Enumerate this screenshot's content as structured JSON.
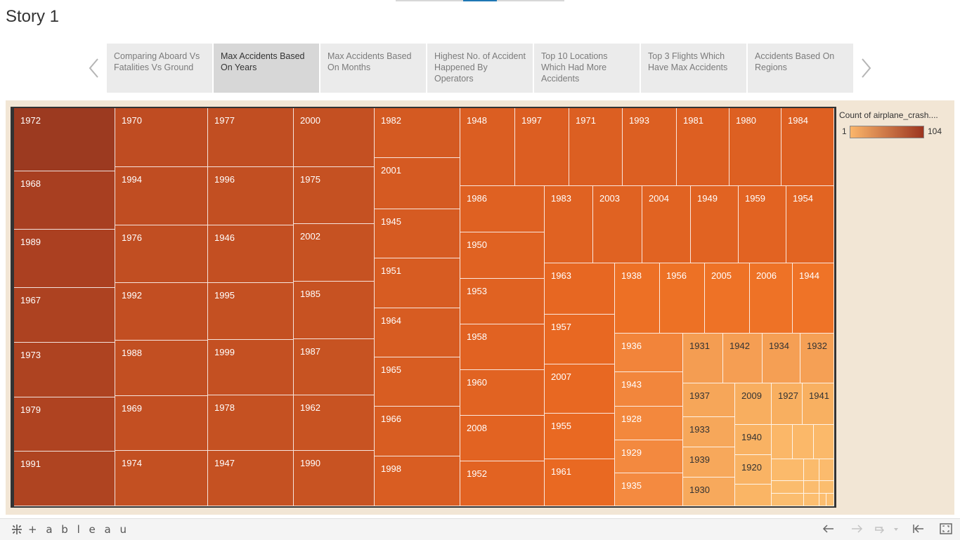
{
  "story": {
    "title": "Story 1",
    "points": [
      {
        "label": "Comparing Aboard Vs Fatalities Vs Ground",
        "active": false
      },
      {
        "label": "Max Accidents Based On Years",
        "active": true
      },
      {
        "label": "Max Accidents Based On Months",
        "active": false
      },
      {
        "label": "Highest No. of Accident Happened  By Operators",
        "active": false
      },
      {
        "label": "Top 10 Locations Which Had More Accidents",
        "active": false
      },
      {
        "label": "Top 3 Flights Which Have Max Accidents",
        "active": false
      },
      {
        "label": "Accidents Based On Regions",
        "active": false
      }
    ]
  },
  "legend": {
    "title": "Count of airplane_crash....",
    "min_label": "1",
    "max_label": "104",
    "color_low": "#fbb66b",
    "color_high": "#9c3520"
  },
  "chart_data": {
    "type": "treemap",
    "measure": "Count of airplane_crash....",
    "color_range": [
      1,
      104
    ],
    "tiles": [
      {
        "label": "1972"
      },
      {
        "label": "1968"
      },
      {
        "label": "1989"
      },
      {
        "label": "1967"
      },
      {
        "label": "1973"
      },
      {
        "label": "1979"
      },
      {
        "label": "1991"
      },
      {
        "label": "1970"
      },
      {
        "label": "1994"
      },
      {
        "label": "1976"
      },
      {
        "label": "1992"
      },
      {
        "label": "1988"
      },
      {
        "label": "1969"
      },
      {
        "label": "1974"
      },
      {
        "label": "1977"
      },
      {
        "label": "1996"
      },
      {
        "label": "1946"
      },
      {
        "label": "1995"
      },
      {
        "label": "1999"
      },
      {
        "label": "1978"
      },
      {
        "label": "1947"
      },
      {
        "label": "2000"
      },
      {
        "label": "1975"
      },
      {
        "label": "2002"
      },
      {
        "label": "1985"
      },
      {
        "label": "1987"
      },
      {
        "label": "1962"
      },
      {
        "label": "1990"
      },
      {
        "label": "1982"
      },
      {
        "label": "2001"
      },
      {
        "label": "1945"
      },
      {
        "label": "1951"
      },
      {
        "label": "1964"
      },
      {
        "label": "1965"
      },
      {
        "label": "1966"
      },
      {
        "label": "1998"
      },
      {
        "label": "1948"
      },
      {
        "label": "1997"
      },
      {
        "label": "1971"
      },
      {
        "label": "1993"
      },
      {
        "label": "1981"
      },
      {
        "label": "1980"
      },
      {
        "label": "1984"
      },
      {
        "label": "1986"
      },
      {
        "label": "1950"
      },
      {
        "label": "1953"
      },
      {
        "label": "1958"
      },
      {
        "label": "1960"
      },
      {
        "label": "2008"
      },
      {
        "label": "1952"
      },
      {
        "label": "1983"
      },
      {
        "label": "2003"
      },
      {
        "label": "2004"
      },
      {
        "label": "1949"
      },
      {
        "label": "1959"
      },
      {
        "label": "1954"
      },
      {
        "label": "1963"
      },
      {
        "label": "1957"
      },
      {
        "label": "2007"
      },
      {
        "label": "1955"
      },
      {
        "label": "1961"
      },
      {
        "label": "1938"
      },
      {
        "label": "1956"
      },
      {
        "label": "2005"
      },
      {
        "label": "2006"
      },
      {
        "label": "1944"
      },
      {
        "label": "1936"
      },
      {
        "label": "1943"
      },
      {
        "label": "1928"
      },
      {
        "label": "1929"
      },
      {
        "label": "1935"
      },
      {
        "label": "1931"
      },
      {
        "label": "1942"
      },
      {
        "label": "1934"
      },
      {
        "label": "1932"
      },
      {
        "label": "1937"
      },
      {
        "label": "1933"
      },
      {
        "label": "1939"
      },
      {
        "label": "1930"
      },
      {
        "label": "2009"
      },
      {
        "label": "1927"
      },
      {
        "label": "1941"
      },
      {
        "label": "1940"
      },
      {
        "label": "1920"
      }
    ]
  },
  "toolbar": {
    "logo_text": "+ a b l e a u",
    "icons": [
      "undo-icon",
      "redo-icon",
      "revert-icon",
      "reset-icon",
      "fullscreen-icon"
    ]
  }
}
